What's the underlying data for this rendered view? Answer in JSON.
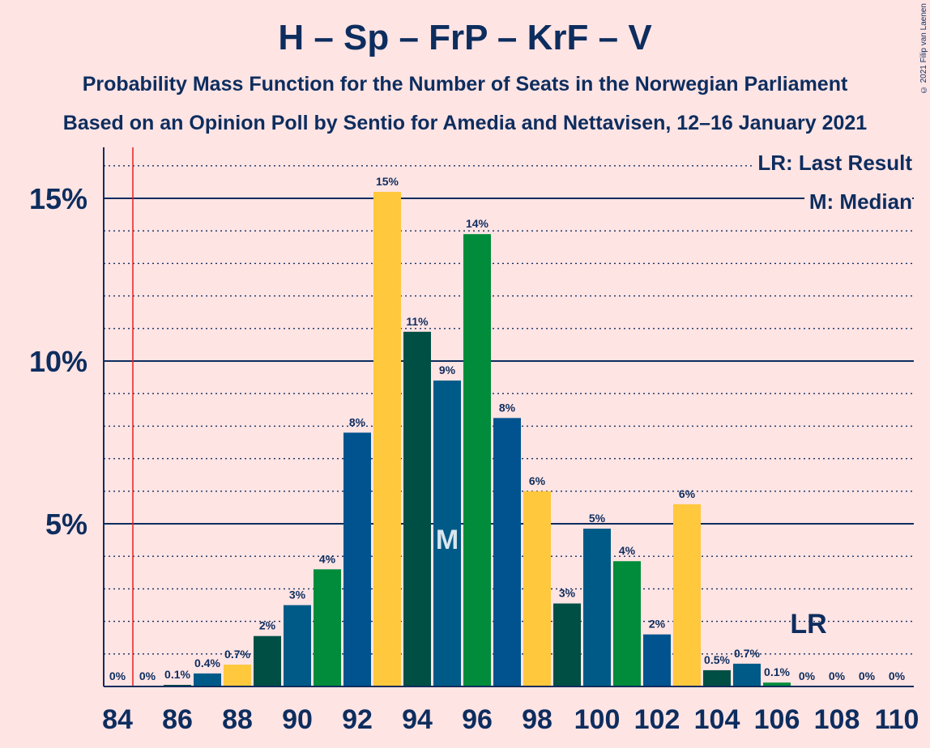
{
  "title": "H – Sp – FrP – KrF – V",
  "subtitle_1": "Probability Mass Function for the Number of Seats in the Norwegian Parliament",
  "subtitle_2": "Based on an Opinion Poll by Sentio for Amedia and Nettavisen, 12–16 January 2021",
  "copyright": "© 2021 Filip van Laenen",
  "legend": {
    "last_result": "LR: Last Result",
    "median": "M: Median"
  },
  "markers": {
    "median_label": "M",
    "last_result_label": "LR"
  },
  "colors": {
    "background": "#ffe4e4",
    "text": "#0d2d5e",
    "bar_palette": [
      "#00538f",
      "#008c3a",
      "#005a87",
      "#ffc83d",
      "#004f45"
    ],
    "last_result_line": "#e8201e"
  },
  "chart_data": {
    "type": "bar",
    "title": "H – Sp – FrP – KrF – V",
    "xlabel": "",
    "ylabel": "",
    "ylim": [
      0,
      16.5
    ],
    "yticks": [
      5,
      10,
      15
    ],
    "ytick_labels": [
      "5%",
      "10%",
      "15%"
    ],
    "xticks": [
      84,
      86,
      88,
      90,
      92,
      94,
      96,
      98,
      100,
      102,
      104,
      106,
      108,
      110
    ],
    "grid": "dotted minor every 1%, solid major every 5%",
    "median_seat": 95,
    "last_result_seat": 85,
    "bars": [
      {
        "seat": 84,
        "value": 0,
        "label": "0%",
        "color": "#004f45"
      },
      {
        "seat": 85,
        "value": 0,
        "label": "0%",
        "color": "#00538f"
      },
      {
        "seat": 86,
        "value": 0.05,
        "label": "0.1%",
        "color": "#004f45"
      },
      {
        "seat": 87,
        "value": 0.4,
        "label": "0.4%",
        "color": "#005a87"
      },
      {
        "seat": 88,
        "value": 0.67,
        "label": "0.7%",
        "color": "#ffc83d"
      },
      {
        "seat": 89,
        "value": 1.55,
        "label": "2%",
        "color": "#004f45"
      },
      {
        "seat": 90,
        "value": 2.5,
        "label": "3%",
        "color": "#005a87"
      },
      {
        "seat": 91,
        "value": 3.6,
        "label": "4%",
        "color": "#008c3a"
      },
      {
        "seat": 92,
        "value": 7.8,
        "label": "8%",
        "color": "#00538f"
      },
      {
        "seat": 93,
        "value": 15.2,
        "label": "15%",
        "color": "#ffc83d"
      },
      {
        "seat": 94,
        "value": 10.9,
        "label": "11%",
        "color": "#004f45"
      },
      {
        "seat": 95,
        "value": 9.4,
        "label": "9%",
        "color": "#005a87"
      },
      {
        "seat": 96,
        "value": 13.9,
        "label": "14%",
        "color": "#008c3a"
      },
      {
        "seat": 97,
        "value": 8.25,
        "label": "8%",
        "color": "#00538f"
      },
      {
        "seat": 98,
        "value": 6.0,
        "label": "6%",
        "color": "#ffc83d"
      },
      {
        "seat": 99,
        "value": 2.55,
        "label": "3%",
        "color": "#004f45"
      },
      {
        "seat": 100,
        "value": 4.85,
        "label": "5%",
        "color": "#005a87"
      },
      {
        "seat": 101,
        "value": 3.85,
        "label": "4%",
        "color": "#008c3a"
      },
      {
        "seat": 102,
        "value": 1.6,
        "label": "2%",
        "color": "#00538f"
      },
      {
        "seat": 103,
        "value": 5.6,
        "label": "6%",
        "color": "#ffc83d"
      },
      {
        "seat": 104,
        "value": 0.5,
        "label": "0.5%",
        "color": "#004f45"
      },
      {
        "seat": 105,
        "value": 0.7,
        "label": "0.7%",
        "color": "#005a87"
      },
      {
        "seat": 106,
        "value": 0.12,
        "label": "0.1%",
        "color": "#008c3a"
      },
      {
        "seat": 107,
        "value": 0,
        "label": "0%",
        "color": "#00538f"
      },
      {
        "seat": 108,
        "value": 0,
        "label": "0%",
        "color": "#ffc83d"
      },
      {
        "seat": 109,
        "value": 0,
        "label": "0%",
        "color": "#004f45"
      },
      {
        "seat": 110,
        "value": 0,
        "label": "0%",
        "color": "#005a87"
      }
    ]
  }
}
